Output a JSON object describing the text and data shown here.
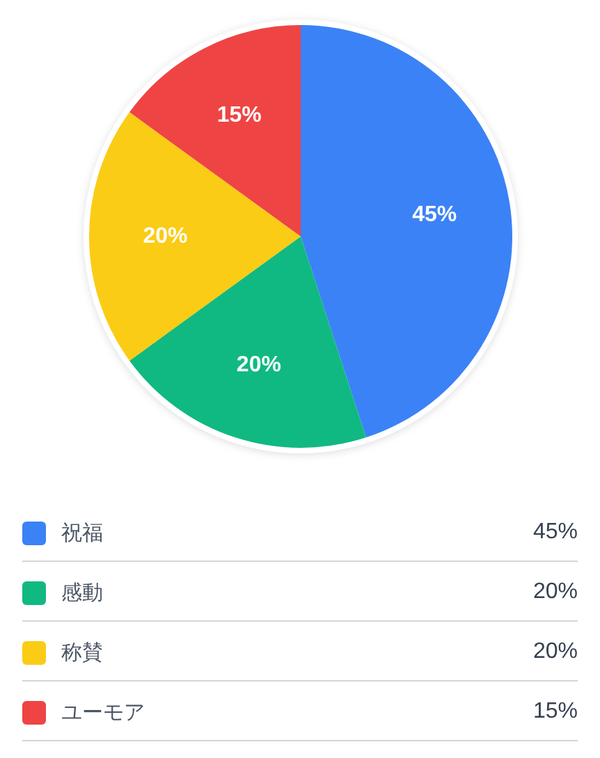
{
  "chart_data": {
    "type": "pie",
    "categories": [
      "祝福",
      "感動",
      "称賛",
      "ユーモア"
    ],
    "values": [
      45,
      20,
      20,
      15
    ],
    "colors": [
      "#3b82f6",
      "#10b981",
      "#facc15",
      "#ef4444"
    ],
    "value_labels": [
      "45%",
      "20%",
      "20%",
      "15%"
    ],
    "legend": "bottom"
  }
}
